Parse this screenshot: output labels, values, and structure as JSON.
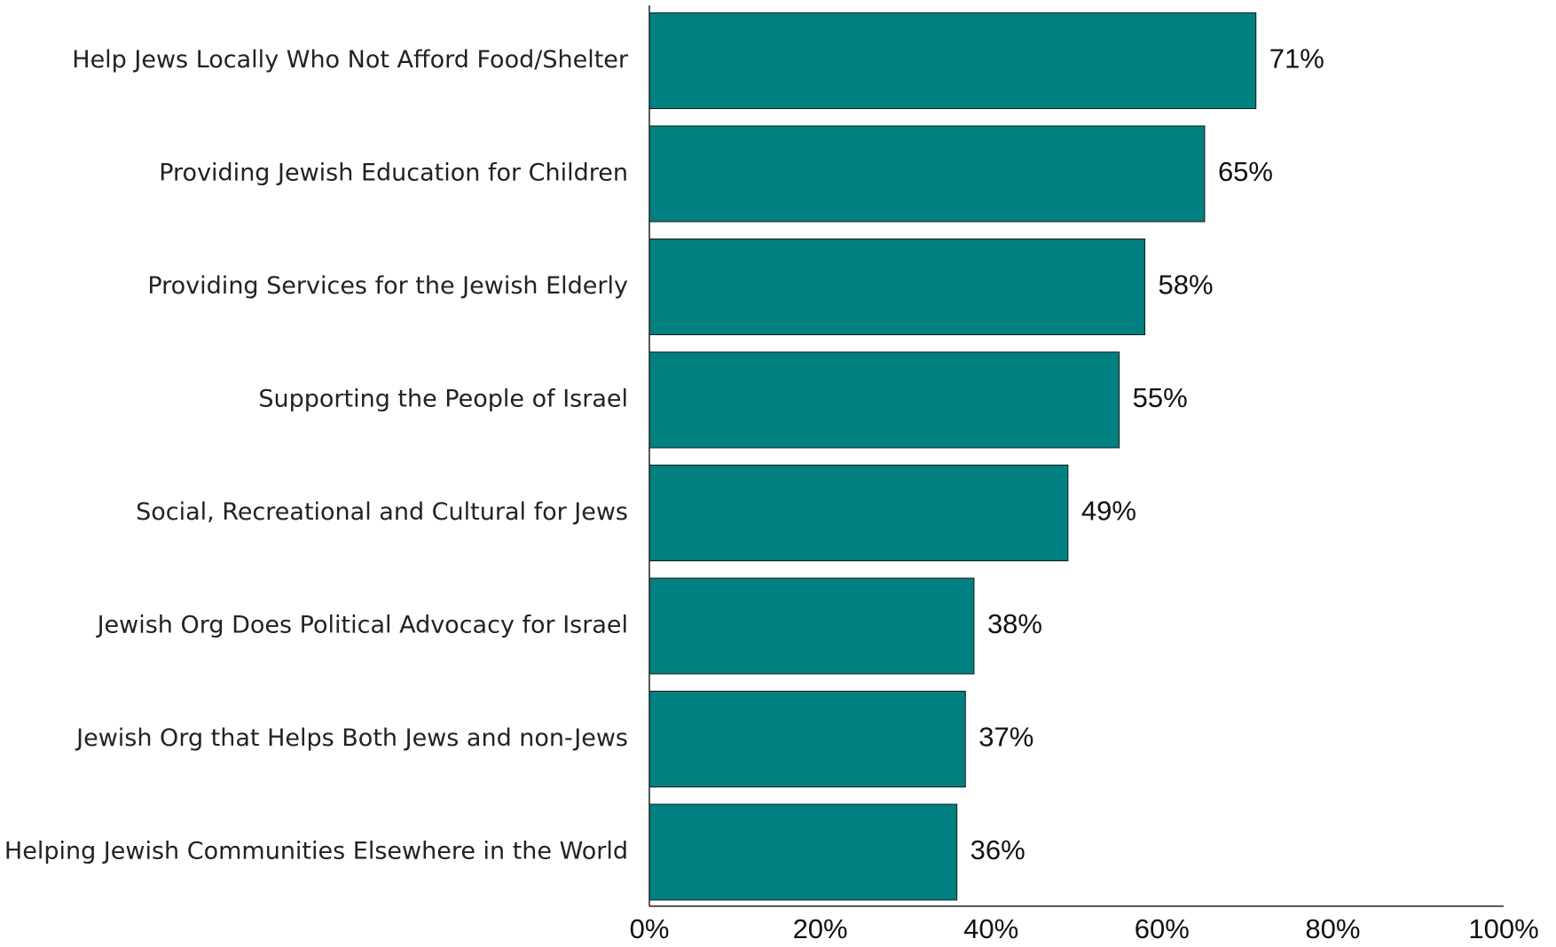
{
  "chart_data": {
    "type": "bar",
    "orientation": "horizontal",
    "categories": [
      "Help Jews Locally Who Not Afford Food/Shelter",
      "Providing Jewish Education for Children",
      "Providing Services for the Jewish Elderly",
      "Supporting the People of Israel",
      "Social, Recreational and Cultural for Jews",
      "Jewish Org Does Political Advocacy for Israel",
      "Jewish Org that Helps Both Jews and non-Jews",
      "Helping Jewish Communities Elsewhere in the World"
    ],
    "values": [
      71,
      65,
      58,
      55,
      49,
      38,
      37,
      36
    ],
    "value_labels": [
      "71%",
      "65%",
      "58%",
      "55%",
      "49%",
      "38%",
      "37%",
      "36%"
    ],
    "xlim": [
      0,
      100
    ],
    "x_ticks": [
      0,
      20,
      40,
      60,
      80,
      100
    ],
    "x_tick_labels": [
      "0%",
      "20%",
      "40%",
      "60%",
      "80%",
      "100%"
    ],
    "title": "",
    "xlabel": "",
    "ylabel": "",
    "grid": false,
    "legend": "none",
    "colors": {
      "bar": "#008080",
      "bar_outline": "#1a1a1a",
      "axis": "#222222",
      "text": "#111111"
    }
  }
}
